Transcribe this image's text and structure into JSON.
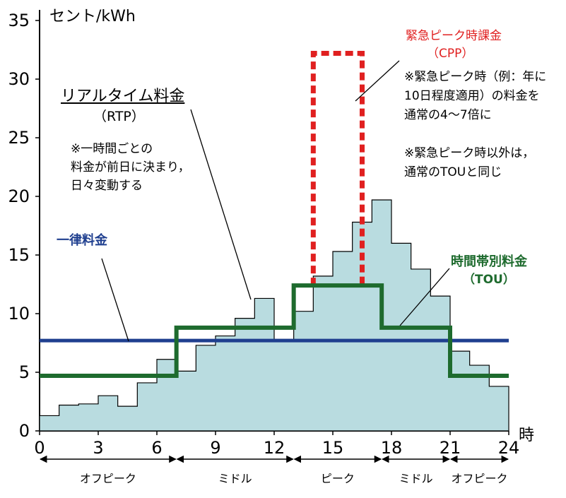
{
  "chart_data": {
    "type": "line",
    "ylabel": "セント/kWh",
    "xlabel": "時",
    "xlim": [
      0,
      24
    ],
    "ylim": [
      0,
      35
    ],
    "x_ticks": [
      "0",
      "3",
      "6",
      "9",
      "12",
      "15",
      "18",
      "21",
      "24"
    ],
    "y_ticks": [
      "0",
      "5",
      "10",
      "15",
      "20",
      "25",
      "30",
      "35"
    ],
    "series": [
      {
        "name": "リアルタイム料金（RTP）",
        "style": "step-area",
        "color": "#b9dce0",
        "hours": [
          0,
          1,
          2,
          3,
          4,
          5,
          6,
          7,
          8,
          9,
          10,
          11,
          12,
          13,
          14,
          15,
          16,
          17,
          18,
          19,
          20,
          21,
          22,
          23,
          24
        ],
        "values": [
          1.3,
          2.2,
          2.3,
          3.0,
          2.1,
          4.1,
          6.1,
          5.1,
          7.3,
          8.1,
          9.6,
          11.3,
          7.8,
          10.2,
          13.2,
          15.3,
          17.8,
          19.7,
          16.0,
          13.8,
          11.5,
          6.8,
          5.6,
          3.8,
          1.3
        ]
      },
      {
        "name": "一律料金",
        "style": "line",
        "color": "#1f3f8f",
        "value": 7.7
      },
      {
        "name": "時間帯別料金（TOU）",
        "style": "step",
        "color": "#1e6b2e",
        "breaks": [
          0,
          7,
          13,
          17.5,
          21,
          24
        ],
        "values": [
          4.7,
          8.8,
          12.4,
          8.8,
          4.7
        ]
      },
      {
        "name": "緊急ピーク時課金（CPP）",
        "style": "dashed-box",
        "color": "#e02020",
        "x_range": [
          14,
          16.5
        ],
        "value": 32.2
      }
    ],
    "periods": [
      {
        "label": "オフピーク",
        "from": 0,
        "to": 7
      },
      {
        "label": "ミドル",
        "from": 7,
        "to": 13
      },
      {
        "label": "ピーク",
        "from": 13,
        "to": 17.5
      },
      {
        "label": "ミドル",
        "from": 17.5,
        "to": 21
      },
      {
        "label": "オフピーク",
        "from": 21,
        "to": 24
      }
    ]
  },
  "annotations": {
    "unit_label": "セント/kWh",
    "hour_label": "時",
    "rtp_title": "リアルタイム料金",
    "rtp_sub": "（RTP）",
    "rtp_note": [
      "※一時間ごとの",
      "料金が前日に決まり，",
      "日々変動する"
    ],
    "flat_label": "一律料金",
    "cpp_title": "緊急ピーク時課金",
    "cpp_sub": "（CPP）",
    "cpp_note": [
      "※緊急ピーク時（例：年に",
      "10日程度適用）の料金を",
      "通常の4～7倍に",
      "",
      "※緊急ピーク時以外は，",
      "通常のTOUと同じ"
    ],
    "tou_title": "時間帯別料金",
    "tou_sub": "（TOU）"
  },
  "colors": {
    "rtp_fill": "#b9dce0",
    "flat": "#1f3f8f",
    "tou": "#1e6b2e",
    "cpp": "#e02020"
  }
}
